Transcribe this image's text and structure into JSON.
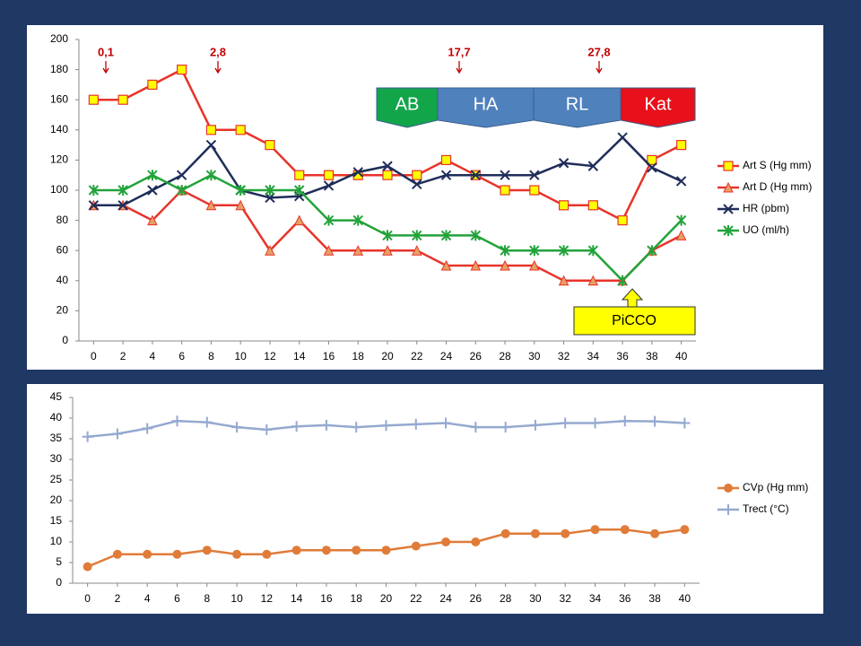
{
  "chart_data": [
    {
      "type": "line",
      "x": [
        0,
        2,
        4,
        6,
        8,
        10,
        12,
        14,
        16,
        18,
        20,
        22,
        24,
        26,
        28,
        30,
        32,
        34,
        36,
        38,
        40
      ],
      "xlim": [
        -1,
        41
      ],
      "xticks": [
        0,
        2,
        4,
        6,
        8,
        10,
        12,
        14,
        16,
        18,
        20,
        22,
        24,
        26,
        28,
        30,
        32,
        34,
        36,
        38,
        40
      ],
      "ylim": [
        0,
        200
      ],
      "yticks": [
        0,
        20,
        40,
        60,
        80,
        100,
        120,
        140,
        160,
        180,
        200
      ],
      "grid": false,
      "legend": "right",
      "annotations": [
        "0,1",
        "2,8",
        "17,7",
        "27,8"
      ],
      "phases": [
        "AB",
        "HA",
        "RL",
        "Kat"
      ],
      "callout": "PiCCO",
      "series": [
        {
          "name": "Art S (Hg mm)",
          "color": "#e8332a",
          "marker": "square",
          "values": [
            160,
            160,
            170,
            180,
            140,
            140,
            130,
            110,
            110,
            110,
            110,
            110,
            120,
            110,
            100,
            100,
            90,
            90,
            80,
            120,
            130
          ]
        },
        {
          "name": "Art D (Hg mm)",
          "color": "#e8332a",
          "marker": "triangle",
          "values": [
            90,
            90,
            80,
            100,
            90,
            90,
            60,
            80,
            60,
            60,
            60,
            60,
            50,
            50,
            50,
            50,
            40,
            40,
            40,
            60,
            70
          ]
        },
        {
          "name": "HR (pbm)",
          "color": "#1f2d5a",
          "marker": "x",
          "values": [
            90,
            90,
            100,
            110,
            130,
            100,
            95,
            96,
            103,
            112,
            116,
            104,
            110,
            110,
            110,
            110,
            118,
            116,
            135,
            115,
            106
          ]
        },
        {
          "name": "UO (ml/h)",
          "color": "#22a33a",
          "marker": "asterisk",
          "values": [
            100,
            100,
            110,
            100,
            110,
            100,
            100,
            100,
            80,
            80,
            70,
            70,
            70,
            70,
            60,
            60,
            60,
            60,
            40,
            60,
            80
          ]
        }
      ]
    },
    {
      "type": "line",
      "x": [
        0,
        2,
        4,
        6,
        8,
        10,
        12,
        14,
        16,
        18,
        20,
        22,
        24,
        26,
        28,
        30,
        32,
        34,
        36,
        38,
        40
      ],
      "xlim": [
        -1,
        41
      ],
      "xticks": [
        0,
        2,
        4,
        6,
        8,
        10,
        12,
        14,
        16,
        18,
        20,
        22,
        24,
        26,
        28,
        30,
        32,
        34,
        36,
        38,
        40
      ],
      "ylim": [
        0,
        45
      ],
      "yticks": [
        0,
        5,
        10,
        15,
        20,
        25,
        30,
        35,
        40,
        45
      ],
      "grid": false,
      "legend": "right",
      "series": [
        {
          "name": "CVp  (Hg mm)",
          "color": "#e07b39",
          "marker": "circle",
          "values": [
            4,
            7,
            7,
            7,
            8,
            7,
            7,
            8,
            8,
            8,
            8,
            9,
            10,
            10,
            12,
            12,
            12,
            13,
            13,
            12,
            13
          ]
        },
        {
          "name": "Trect (°C)",
          "color": "#95a9d0",
          "marker": "plus",
          "values": [
            35.5,
            36.2,
            37.5,
            39.3,
            39,
            37.8,
            37.2,
            38,
            38.3,
            37.8,
            38.2,
            38.5,
            38.8,
            37.8,
            37.8,
            38.3,
            38.8,
            38.8,
            39.3,
            39.2,
            38.8
          ]
        }
      ]
    }
  ]
}
